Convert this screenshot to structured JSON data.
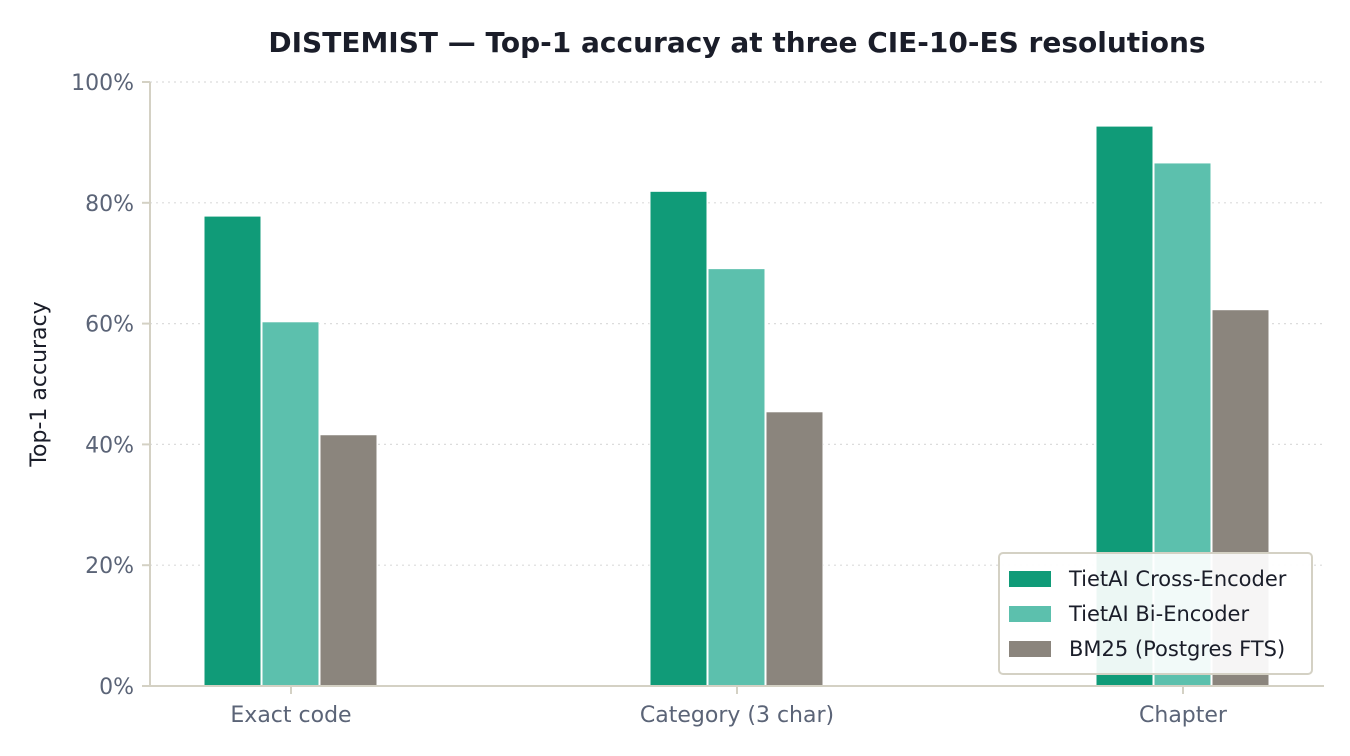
{
  "chart_data": {
    "type": "bar",
    "title": "DISTEMIST — Top-1 accuracy at three CIE-10-ES resolutions",
    "xlabel": "",
    "ylabel": "Top-1 accuracy",
    "categories": [
      "Exact code",
      "Category (3 char)",
      "Chapter"
    ],
    "series": [
      {
        "name": "TietAI Cross-Encoder",
        "color": "#109b78",
        "values": [
          77.8,
          81.9,
          92.7
        ]
      },
      {
        "name": "TietAI Bi-Encoder",
        "color": "#5cc0ad",
        "values": [
          60.3,
          69.1,
          86.6
        ]
      },
      {
        "name": "BM25 (Postgres FTS)",
        "color": "#8b857d",
        "values": [
          41.6,
          45.4,
          62.3
        ]
      }
    ],
    "ylim": [
      0,
      100
    ],
    "yticks": [
      0,
      20,
      40,
      60,
      80,
      100
    ],
    "ytick_labels": [
      "0%",
      "20%",
      "40%",
      "60%",
      "80%",
      "100%"
    ],
    "grid": "horizontal dotted",
    "legend_position": "lower-right"
  }
}
